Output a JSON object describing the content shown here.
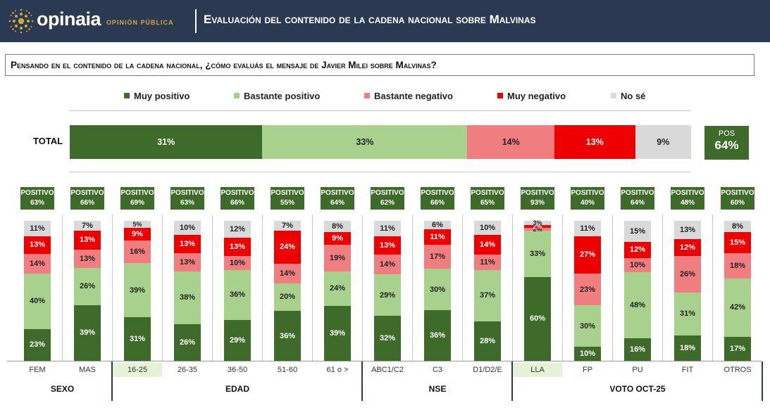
{
  "header": {
    "brand": "opinaia",
    "brand_sub": "OPINIÓN PÚBLICA",
    "title": "Evaluación del contenido de la cadena nacional sobre Malvinas"
  },
  "question": "Pensando en el contenido de la cadena nacional, ¿cómo evaluás el mensaje de Javier Milei sobre Malvinas?",
  "colors": {
    "Muy positivo": "#3f6b2a",
    "Bastante positivo": "#a9d18e",
    "Bastante negativo": "#f07e80",
    "Muy negativo": "#ee0000",
    "No sé": "#d9d9d9",
    "header_bg": "#2b3a52",
    "brand_gold": "#d4a73a"
  },
  "chart_data": {
    "type": "bar",
    "stacked": true,
    "orientation": "mixed",
    "legend": [
      "Muy positivo",
      "Bastante positivo",
      "Bastante negativo",
      "Muy negativo",
      "No sé"
    ],
    "legend_position": "top",
    "total": {
      "label": "TOTAL",
      "values": [
        31,
        33,
        14,
        13,
        9
      ],
      "pos_label": "POS",
      "pos_value": "64%"
    },
    "positivo_label": "POSITIVO",
    "categories": [
      "FEM",
      "MAS",
      "16-25",
      "26-35",
      "36-50",
      "51-60",
      "61 o >",
      "ABC1/C2",
      "C3",
      "D1/D2/E",
      "LLA",
      "FP",
      "PU",
      "FIT",
      "OTROS"
    ],
    "highlight_categories": [
      "16-25",
      "LLA"
    ],
    "groups": [
      {
        "label": "SEXO",
        "categories": [
          "FEM",
          "MAS"
        ]
      },
      {
        "label": "EDAD",
        "categories": [
          "16-25",
          "26-35",
          "36-50",
          "51-60",
          "61 o >"
        ]
      },
      {
        "label": "NSE",
        "categories": [
          "ABC1/C2",
          "C3",
          "D1/D2/E"
        ]
      },
      {
        "label": "VOTO OCT-25",
        "categories": [
          "LLA",
          "FP",
          "PU",
          "FIT",
          "OTROS"
        ]
      }
    ],
    "positivo": [
      "63%",
      "66%",
      "69%",
      "63%",
      "66%",
      "55%",
      "64%",
      "62%",
      "66%",
      "65%",
      "93%",
      "40%",
      "64%",
      "48%",
      "60%"
    ],
    "series": [
      {
        "name": "Muy positivo",
        "values": [
          23,
          39,
          31,
          26,
          29,
          36,
          39,
          32,
          36,
          28,
          60,
          10,
          16,
          18,
          17
        ]
      },
      {
        "name": "Bastante positivo",
        "values": [
          40,
          26,
          39,
          38,
          36,
          20,
          24,
          29,
          30,
          37,
          33,
          30,
          48,
          31,
          42
        ]
      },
      {
        "name": "Bastante negativo",
        "values": [
          14,
          13,
          16,
          13,
          10,
          14,
          19,
          14,
          17,
          11,
          2,
          23,
          10,
          26,
          18
        ]
      },
      {
        "name": "Muy negativo",
        "values": [
          13,
          13,
          9,
          13,
          13,
          24,
          9,
          13,
          11,
          14,
          2,
          27,
          12,
          12,
          15
        ]
      },
      {
        "name": "No sé",
        "values": [
          11,
          7,
          5,
          10,
          12,
          7,
          8,
          11,
          6,
          10,
          3,
          11,
          15,
          13,
          8
        ]
      }
    ],
    "labels": [
      [
        "23%",
        "40%",
        "14%",
        "13%",
        "11%"
      ],
      [
        "39%",
        "26%",
        "13%",
        "13%",
        "7%"
      ],
      [
        "31%",
        "39%",
        "16%",
        "9%",
        "5%"
      ],
      [
        "26%",
        "38%",
        "13%",
        "13%",
        "10%"
      ],
      [
        "29%",
        "36%",
        "10%",
        "13%",
        "12%"
      ],
      [
        "36%",
        "20%",
        "14%",
        "24%",
        "7%"
      ],
      [
        "39%",
        "24%",
        "19%",
        "9%",
        "8%"
      ],
      [
        "32%",
        "29%",
        "14%",
        "13%",
        "11%"
      ],
      [
        "36%",
        "30%",
        "17%",
        "11%",
        "6%"
      ],
      [
        "28%",
        "37%",
        "11%",
        "14%",
        "10%"
      ],
      [
        "60%",
        "33%",
        "2%",
        "2%",
        "3%"
      ],
      [
        "10%",
        "30%",
        "23%",
        "27%",
        "11%"
      ],
      [
        "16%",
        "48%",
        "10%",
        "12%",
        "15%"
      ],
      [
        "18%",
        "31%",
        "26%",
        "12%",
        "13%"
      ],
      [
        "17%",
        "42%",
        "18%",
        "15%",
        "8%"
      ]
    ]
  }
}
